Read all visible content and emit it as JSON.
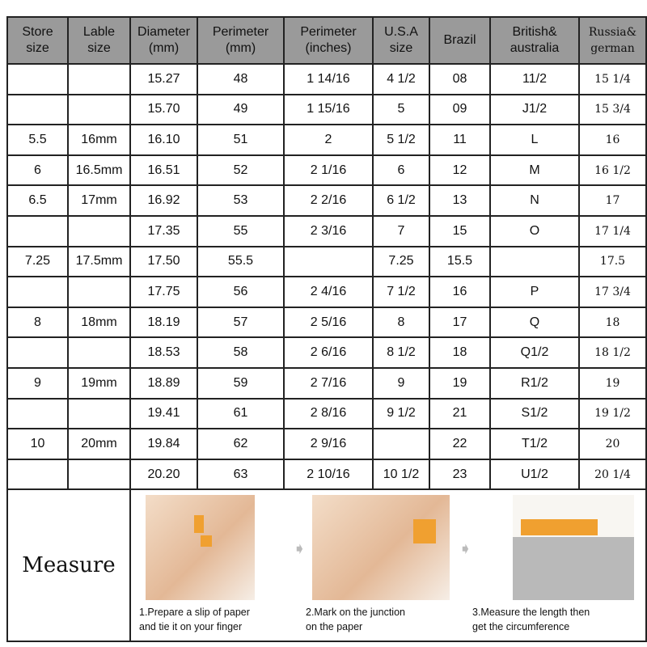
{
  "headers": [
    [
      "Store",
      "size"
    ],
    [
      "Lable",
      "size"
    ],
    [
      "Diameter",
      "(mm)"
    ],
    [
      "Perimeter",
      "(mm)"
    ],
    [
      "Perimeter",
      "(inches)"
    ],
    [
      "U.S.A",
      "size"
    ],
    [
      "Brazil",
      ""
    ],
    [
      "British&",
      "australia"
    ],
    [
      "Russia&",
      "german"
    ]
  ],
  "rows": [
    [
      "",
      "",
      "15.27",
      "48",
      "1 14/16",
      "4 1/2",
      "08",
      "11/2",
      "15 1/4"
    ],
    [
      "",
      "",
      "15.70",
      "49",
      "1 15/16",
      "5",
      "09",
      "J1/2",
      "15 3/4"
    ],
    [
      "5.5",
      "16mm",
      "16.10",
      "51",
      "2",
      "5 1/2",
      "11",
      "L",
      "16"
    ],
    [
      "6",
      "16.5mm",
      "16.51",
      "52",
      "2 1/16",
      "6",
      "12",
      "M",
      "16 1/2"
    ],
    [
      "6.5",
      "17mm",
      "16.92",
      "53",
      "2 2/16",
      "6 1/2",
      "13",
      "N",
      "17"
    ],
    [
      "",
      "",
      "17.35",
      "55",
      "2 3/16",
      "7",
      "15",
      "O",
      "17 1/4"
    ],
    [
      "7.25",
      "17.5mm",
      "17.50",
      "55.5",
      "",
      "7.25",
      "15.5",
      "",
      "17.5"
    ],
    [
      "",
      "",
      "17.75",
      "56",
      "2 4/16",
      "7 1/2",
      "16",
      "P",
      "17 3/4"
    ],
    [
      "8",
      "18mm",
      "18.19",
      "57",
      "2 5/16",
      "8",
      "17",
      "Q",
      "18"
    ],
    [
      "",
      "",
      "18.53",
      "58",
      "2 6/16",
      "8 1/2",
      "18",
      "Q1/2",
      "18 1/2"
    ],
    [
      "9",
      "19mm",
      "18.89",
      "59",
      "2 7/16",
      "9",
      "19",
      "R1/2",
      "19"
    ],
    [
      "",
      "",
      "19.41",
      "61",
      "2 8/16",
      "9 1/2",
      "21",
      "S1/2",
      "19 1/2"
    ],
    [
      "10",
      "20mm",
      "19.84",
      "62",
      "2 9/16",
      "",
      "22",
      "T1/2",
      "20"
    ],
    [
      "",
      "",
      "20.20",
      "63",
      "2 10/16",
      "10 1/2",
      "23",
      "U1/2",
      "20 1/4"
    ]
  ],
  "measure": {
    "label": "Measure",
    "steps": [
      {
        "line1": "1.Prepare a slip of paper",
        "line2": "and tie it on your finger"
      },
      {
        "line1": "2.Mark on  the junction",
        "line2": "on the paper"
      },
      {
        "line1": "3.Measure the length then",
        "line2": "get the circumference"
      }
    ]
  },
  "colors": {
    "header_bg": "#9a9a9a",
    "paper": "#f0a030"
  }
}
